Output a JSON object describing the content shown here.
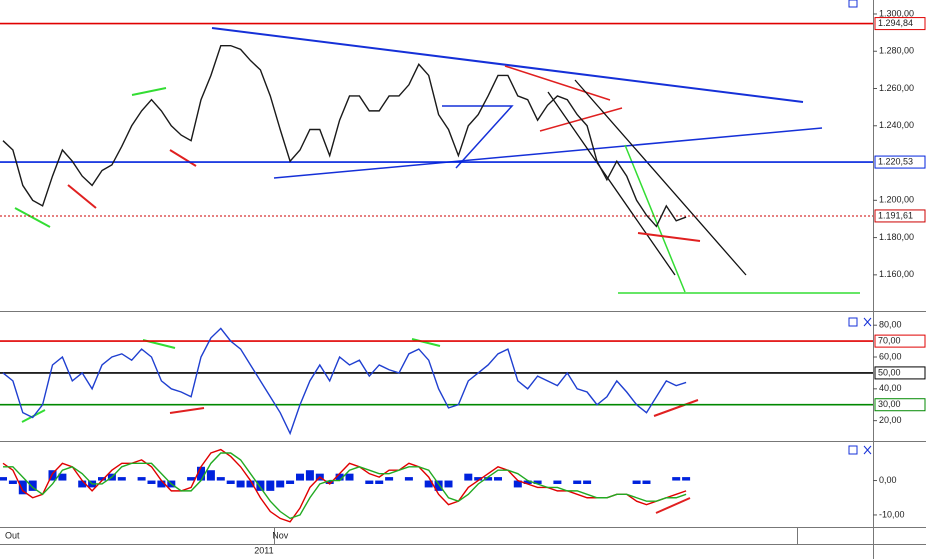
{
  "chart_data": [
    {
      "type": "line",
      "color": "#1a1a1a",
      "categories": [
        "Out",
        null,
        null,
        null,
        null,
        null,
        null,
        null,
        null,
        null,
        null,
        null,
        null,
        null,
        null,
        null,
        null,
        null,
        null,
        null,
        null,
        null,
        null,
        null,
        null,
        null,
        null,
        "Nov",
        null,
        null,
        null,
        null,
        null,
        null,
        null,
        null,
        null,
        null,
        null,
        null,
        null,
        null,
        null,
        null,
        null,
        null,
        null,
        null,
        null,
        null,
        null,
        null,
        null,
        null,
        null,
        null,
        null,
        null,
        null,
        null,
        null,
        null,
        null,
        null,
        null,
        null,
        null,
        null,
        null,
        null
      ],
      "xlabel": "2011",
      "values": [
        1232,
        1227,
        1208,
        1200,
        1197,
        1213,
        1227,
        1221,
        1213,
        1208,
        1216,
        1219,
        1229,
        1240,
        1248,
        1254,
        1248,
        1240,
        1235,
        1232,
        1254,
        1267,
        1283,
        1283,
        1281,
        1275,
        1270,
        1256,
        1238,
        1221,
        1227,
        1238,
        1238,
        1224,
        1243,
        1256,
        1256,
        1248,
        1248,
        1256,
        1256,
        1262,
        1273,
        1267,
        1246,
        1238,
        1224,
        1240,
        1246,
        1256,
        1267,
        1267,
        1256,
        1254,
        1243,
        1251,
        1256,
        1254,
        1246,
        1240,
        1221,
        1211,
        1221,
        1213,
        1200,
        1192,
        1186,
        1197,
        1189,
        1191
      ],
      "ylim": [
        1140.6,
        1307.5
      ],
      "yticks": [
        {
          "value": 1160,
          "label": "1.160,00"
        },
        {
          "value": 1180,
          "label": "1.180,00"
        },
        {
          "value": 1200,
          "label": "1.200,00"
        },
        {
          "value": 1240,
          "label": "1.240,00"
        },
        {
          "value": 1260,
          "label": "1.260,00"
        },
        {
          "value": 1280,
          "label": "1.280,00"
        },
        {
          "value": 1300,
          "label": "1.300,00"
        }
      ],
      "levels": [
        {
          "value": 1294.84,
          "label": "1.294,84",
          "color": "#e00000",
          "dash": false
        },
        {
          "value": 1220.53,
          "label": "1.220,53",
          "color": "#0022dd",
          "dash": false
        },
        {
          "value": 1191.61,
          "label": "1.191,61",
          "color": "#cc0000",
          "dash": true
        }
      ]
    },
    {
      "type": "line",
      "color": "#1f3fd0",
      "values": [
        50,
        45,
        25,
        22,
        30,
        55,
        60,
        45,
        50,
        40,
        55,
        60,
        62,
        58,
        65,
        60,
        45,
        40,
        38,
        35,
        60,
        72,
        78,
        70,
        65,
        55,
        45,
        35,
        25,
        12,
        30,
        45,
        55,
        45,
        60,
        55,
        58,
        48,
        55,
        52,
        50,
        62,
        65,
        58,
        40,
        28,
        30,
        45,
        50,
        55,
        62,
        65,
        45,
        40,
        48,
        45,
        42,
        50,
        40,
        38,
        30,
        35,
        45,
        38,
        30,
        25,
        35,
        45,
        42,
        44
      ],
      "ylim": [
        7.2,
        88.3
      ],
      "yticks": [
        {
          "value": 20,
          "label": "20,00"
        },
        {
          "value": 40,
          "label": "40,00"
        },
        {
          "value": 60,
          "label": "60,00"
        },
        {
          "value": 80,
          "label": "80,00"
        }
      ],
      "levels": [
        {
          "value": 70,
          "label": "70,00",
          "color": "#e00000",
          "dash": false
        },
        {
          "value": 50,
          "label": "50,00",
          "color": "#000000",
          "dash": false
        },
        {
          "value": 30,
          "label": "30,00",
          "color": "#008800",
          "dash": false
        }
      ]
    },
    {
      "type": "macd",
      "series": [
        {
          "kind": "bar",
          "color": "#0022dd",
          "values": [
            1,
            -1,
            -4,
            -3,
            0,
            3,
            2,
            0,
            -2,
            -2,
            1,
            2,
            1,
            0,
            1,
            -1,
            -2,
            -2,
            0,
            1,
            4,
            3,
            1,
            -1,
            -2,
            -2,
            -3,
            -3,
            -2,
            -1,
            2,
            3,
            2,
            -1,
            2,
            2,
            0,
            -1,
            -1,
            1,
            0,
            1,
            0,
            -2,
            -3,
            -2,
            0,
            2,
            1,
            1,
            1,
            0,
            -2,
            -1,
            -1,
            0,
            -1,
            0,
            -1,
            -1,
            0,
            0,
            0,
            0,
            -1,
            -1,
            0,
            0,
            1,
            1
          ]
        },
        {
          "kind": "line",
          "color": "#e00000",
          "values": [
            5,
            3,
            -3,
            -5,
            -4,
            2,
            5,
            4,
            0,
            -3,
            0,
            3,
            5,
            5,
            6,
            4,
            0,
            -3,
            -3,
            -2,
            4,
            8,
            9,
            7,
            4,
            0,
            -5,
            -9,
            -11,
            -12,
            -8,
            -2,
            1,
            -1,
            2,
            5,
            4,
            2,
            1,
            3,
            3,
            5,
            4,
            1,
            -4,
            -7,
            -6,
            -2,
            0,
            2,
            4,
            3,
            0,
            -1,
            -2,
            -2,
            -3,
            -3,
            -4,
            -5,
            -5,
            -5,
            -4,
            -4,
            -6,
            -7,
            -6,
            -5,
            -4,
            -3
          ]
        },
        {
          "kind": "line",
          "color": "#22aa22",
          "values": [
            4,
            4,
            1,
            -2,
            -4,
            -1,
            3,
            4,
            2,
            -1,
            -1,
            1,
            4,
            5,
            5,
            5,
            2,
            -1,
            -3,
            -3,
            0,
            5,
            8,
            8,
            6,
            2,
            -2,
            -6,
            -9,
            -11,
            -10,
            -5,
            -1,
            0,
            0,
            3,
            4,
            3,
            2,
            2,
            3,
            4,
            4,
            3,
            -1,
            -5,
            -6,
            -4,
            -1,
            1,
            3,
            3,
            2,
            0,
            -1,
            -2,
            -2,
            -3,
            -3,
            -4,
            -5,
            -5,
            -4,
            -4,
            -5,
            -6,
            -6,
            -5,
            -5,
            -4
          ]
        }
      ],
      "ylim": [
        -13.5,
        11.2
      ],
      "yticks": [
        {
          "value": -10,
          "label": "-10,00"
        },
        {
          "value": 0,
          "label": "0,00"
        }
      ]
    }
  ]
}
